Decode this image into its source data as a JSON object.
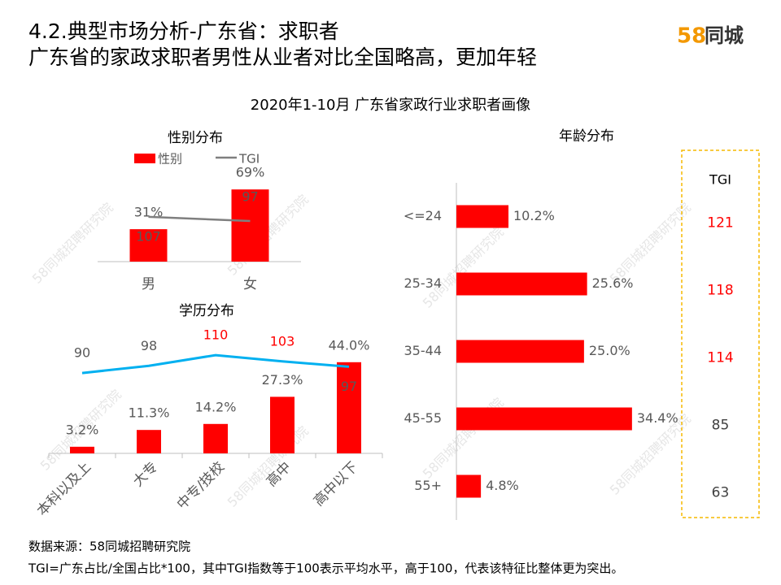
{
  "header": {
    "title": "4.2.典型市场分析-广东省：求职者",
    "subtitle": "广东省的家政求职者男性从业者对比全国略高，更加年轻",
    "logo": {
      "mark": "58",
      "name": "同城"
    }
  },
  "main_title": "2020年1-10月 广东省家政行业求职者画像",
  "watermark": "58同城招聘研究院",
  "chart_data": [
    {
      "type": "bar",
      "title": "性别分布",
      "categories": [
        "男",
        "女"
      ],
      "series": [
        {
          "name": "性别",
          "color": "#ff0000",
          "values": [
            31,
            69
          ],
          "value_labels": [
            "31%",
            "69%"
          ]
        },
        {
          "name": "TGI",
          "color": "#7f7f7f",
          "axis": "y2",
          "values": [
            107,
            97
          ]
        }
      ],
      "ylim": [
        0,
        80
      ],
      "y2lim": [
        0,
        200
      ],
      "legend": "top"
    },
    {
      "type": "hbar",
      "title": "年龄分布",
      "categories": [
        "<=24",
        "25-34",
        "35-44",
        "45-55",
        "55+"
      ],
      "series": [
        {
          "name": "年龄",
          "color": "#ff0000",
          "values": [
            10.2,
            25.6,
            25.0,
            34.4,
            4.8
          ],
          "value_labels": [
            "10.2%",
            "25.6%",
            "25.0%",
            "34.4%",
            "4.8%"
          ]
        }
      ],
      "xlim": [
        0,
        40
      ],
      "tgi": {
        "header": "TGI",
        "values": [
          121,
          118,
          114,
          85,
          63
        ],
        "colors": [
          "#ff0000",
          "#ff0000",
          "#ff0000",
          "#404040",
          "#404040"
        ]
      }
    },
    {
      "type": "bar",
      "title": "学历分布",
      "categories": [
        "本科以及上",
        "大专",
        "中专/技校",
        "高中",
        "高中以下"
      ],
      "series": [
        {
          "name": "学历",
          "color": "#ff0000",
          "values": [
            3.2,
            11.3,
            14.2,
            27.3,
            44.0
          ],
          "value_labels": [
            "3.2%",
            "11.3%",
            "14.2%",
            "27.3%",
            "44.0%"
          ]
        },
        {
          "name": "TGI",
          "color": "#00b0f0",
          "axis": "y2",
          "values": [
            90,
            98,
            110,
            103,
            97
          ],
          "label_colors": [
            "#595959",
            "#595959",
            "#ff0000",
            "#ff0000",
            "#595959"
          ]
        }
      ],
      "ylim": [
        0,
        50
      ],
      "y2lim": [
        0,
        116
      ]
    }
  ],
  "footer": {
    "source": "数据来源：58同城招聘研究院",
    "note": "TGI=广东占比/全国占比*100，其中TGI指数等于100表示平均水平，高于100，代表该特征比整体更为突出。"
  }
}
